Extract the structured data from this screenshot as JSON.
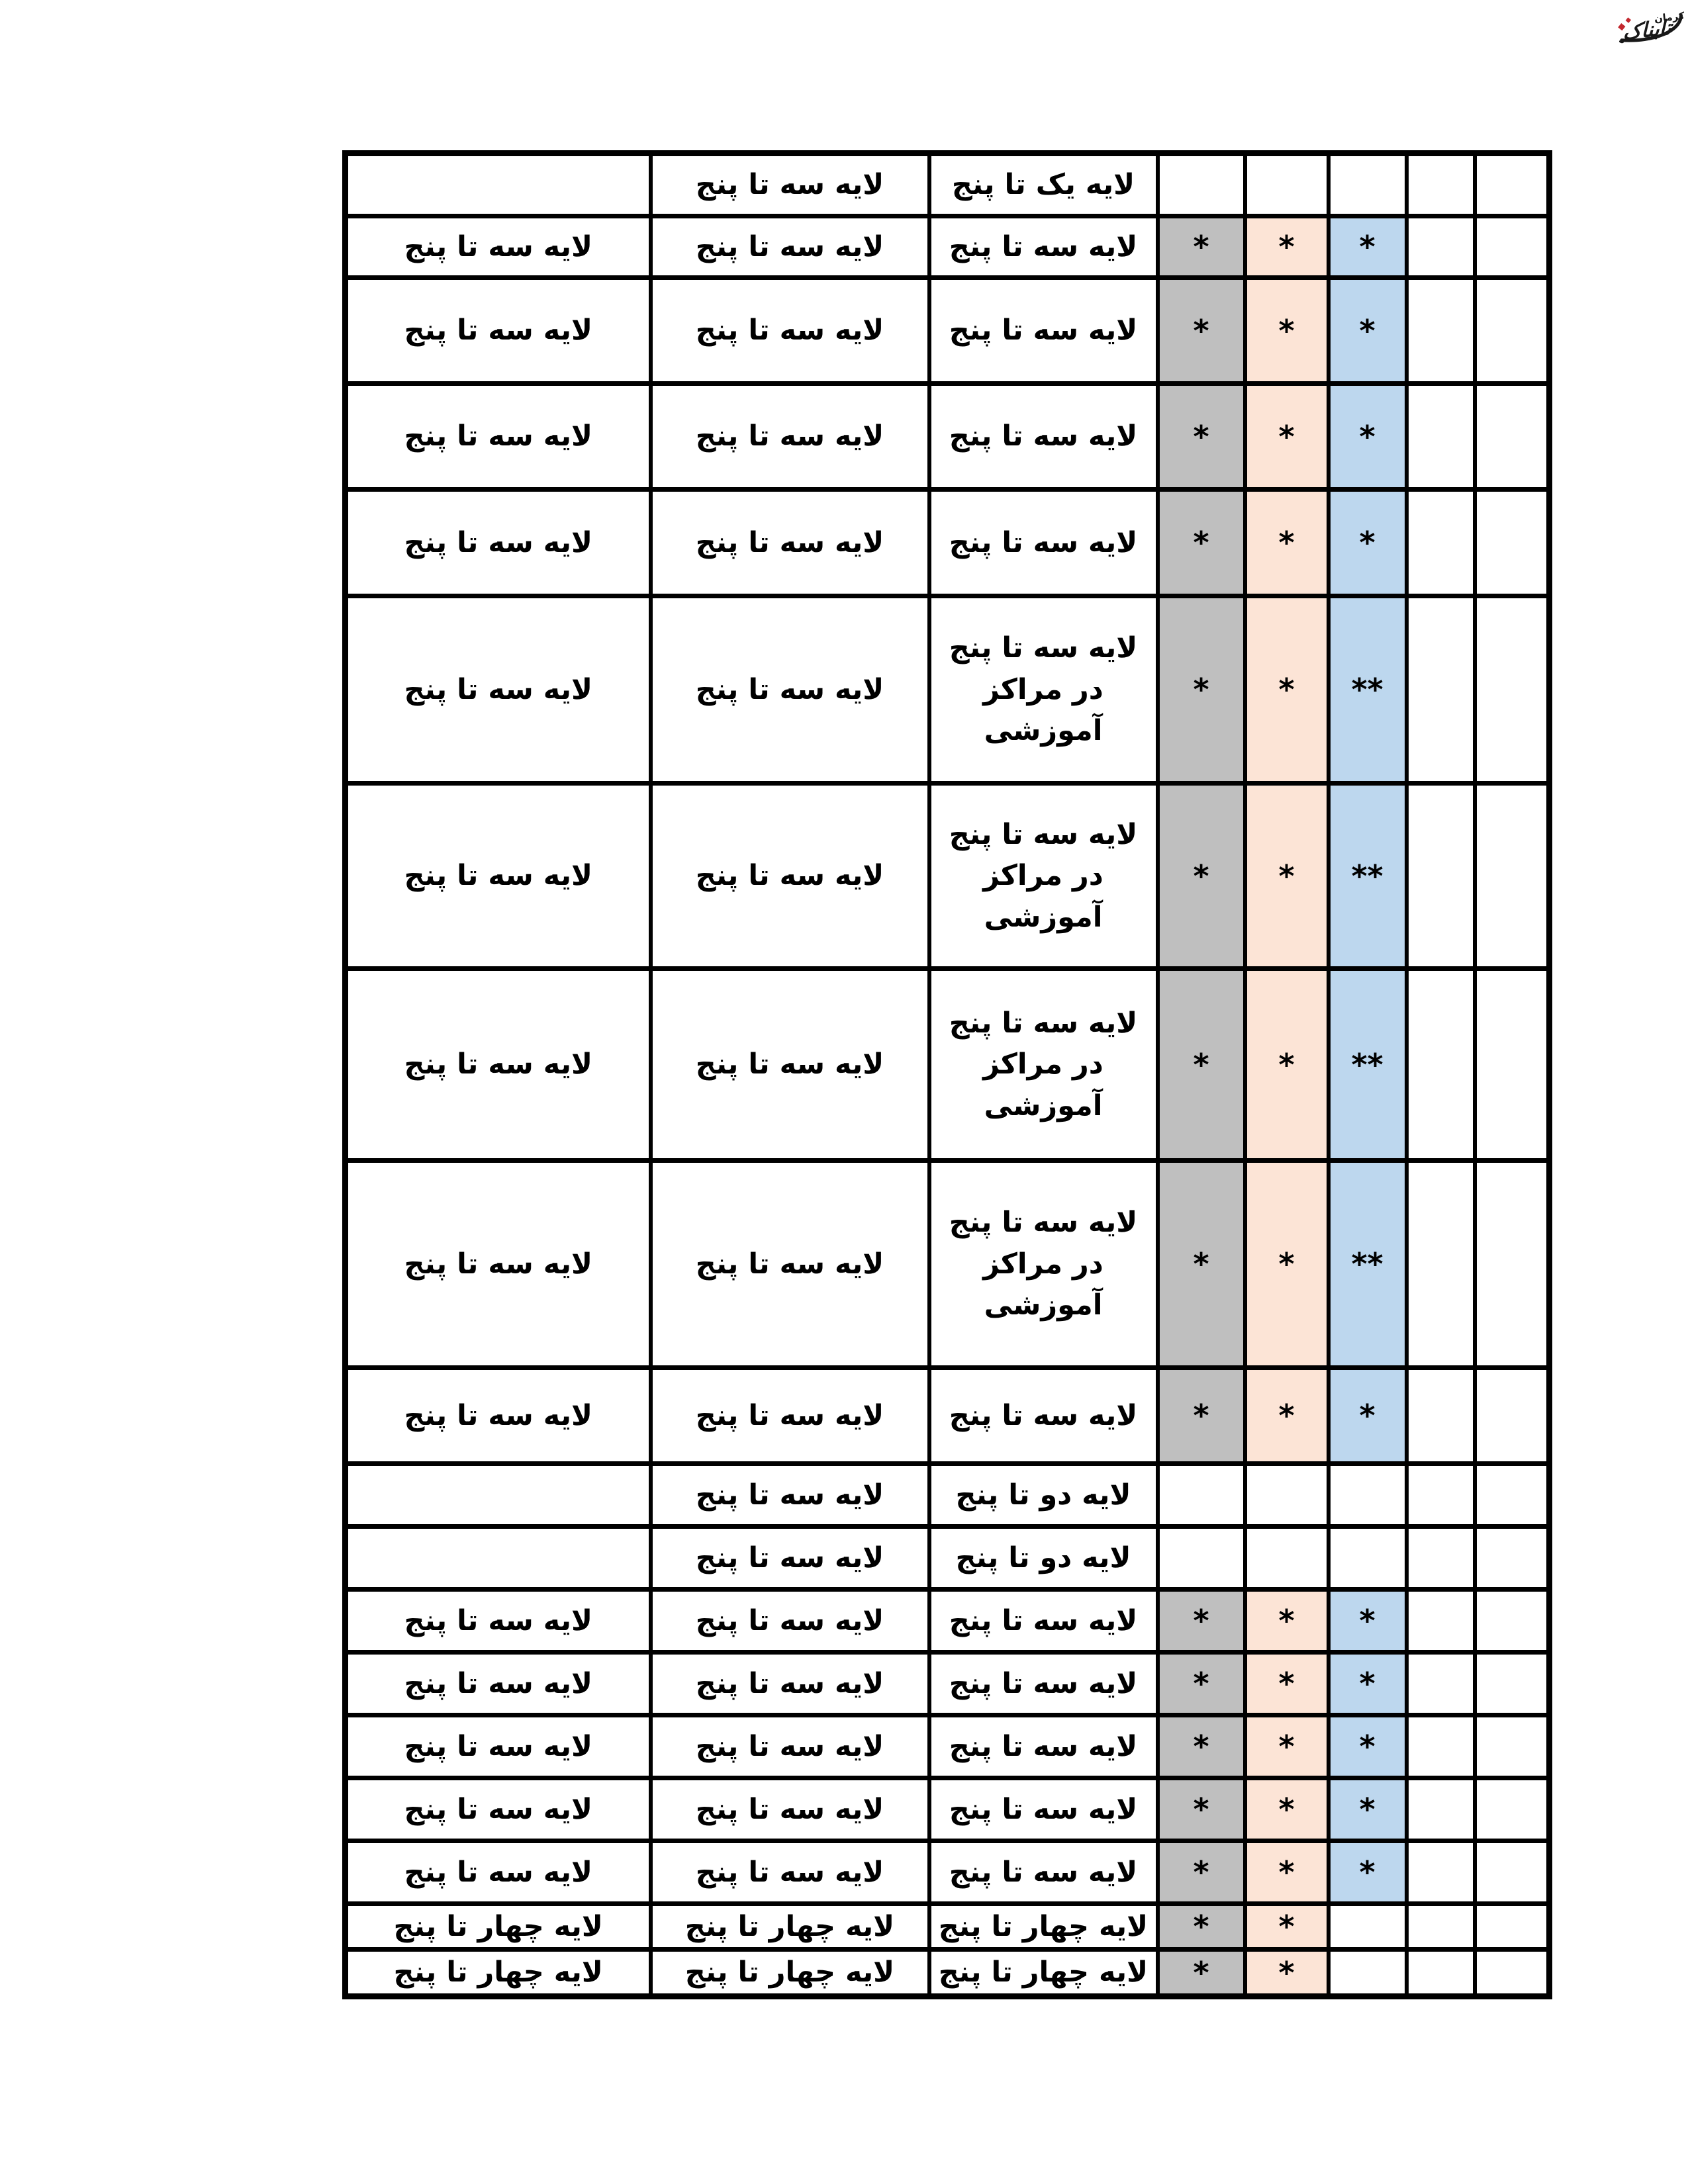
{
  "logo": {
    "title": "تابناک",
    "subtitle": "کرمان",
    "text_color": "#181818",
    "accent_color": "#c3272e"
  },
  "table": {
    "fill_colors": {
      "gray": "#BFBFBF",
      "peach": "#FCE4D6",
      "blue": "#BDD7EE"
    },
    "rows": [
      {
        "cells": [
          {
            "t": "",
            "bg": null
          },
          {
            "t": "لایه سه تا پنج",
            "bg": null
          },
          {
            "t": "لایه یک تا پنج",
            "bg": null
          },
          {
            "t": "",
            "bg": null
          },
          {
            "t": "",
            "bg": null
          },
          {
            "t": "",
            "bg": null
          },
          {
            "t": "",
            "bg": null
          },
          {
            "t": "",
            "bg": null
          }
        ]
      },
      {
        "cells": [
          {
            "t": "لایه سه تا پنج",
            "bg": null
          },
          {
            "t": "لایه سه تا پنج",
            "bg": null
          },
          {
            "t": "لایه سه تا پنج",
            "bg": null
          },
          {
            "t": "*",
            "bg": "gray"
          },
          {
            "t": "*",
            "bg": "peach"
          },
          {
            "t": "*",
            "bg": "blue"
          },
          {
            "t": "",
            "bg": null
          },
          {
            "t": "",
            "bg": null
          }
        ]
      },
      {
        "cells": [
          {
            "t": "لایه سه تا پنج",
            "bg": null
          },
          {
            "t": "لایه سه تا پنج",
            "bg": null
          },
          {
            "t": "لایه سه تا پنج",
            "bg": null
          },
          {
            "t": "*",
            "bg": "gray"
          },
          {
            "t": "*",
            "bg": "peach"
          },
          {
            "t": "*",
            "bg": "blue"
          },
          {
            "t": "",
            "bg": null
          },
          {
            "t": "",
            "bg": null
          }
        ]
      },
      {
        "cells": [
          {
            "t": "لایه سه تا پنج",
            "bg": null
          },
          {
            "t": "لایه سه تا پنج",
            "bg": null
          },
          {
            "t": "لایه سه تا پنج",
            "bg": null
          },
          {
            "t": "*",
            "bg": "gray"
          },
          {
            "t": "*",
            "bg": "peach"
          },
          {
            "t": "*",
            "bg": "blue"
          },
          {
            "t": "",
            "bg": null
          },
          {
            "t": "",
            "bg": null
          }
        ]
      },
      {
        "cells": [
          {
            "t": "لایه سه تا پنج",
            "bg": null
          },
          {
            "t": "لایه سه تا پنج",
            "bg": null
          },
          {
            "t": "لایه سه تا پنج",
            "bg": null
          },
          {
            "t": "*",
            "bg": "gray"
          },
          {
            "t": "*",
            "bg": "peach"
          },
          {
            "t": "*",
            "bg": "blue"
          },
          {
            "t": "",
            "bg": null
          },
          {
            "t": "",
            "bg": null
          }
        ]
      },
      {
        "cells": [
          {
            "t": "لایه سه تا پنج",
            "bg": null
          },
          {
            "t": "لایه سه تا پنج",
            "bg": null
          },
          {
            "t": "لایه سه تا پنج در مراکز آموزشی",
            "bg": null
          },
          {
            "t": "*",
            "bg": "gray"
          },
          {
            "t": "*",
            "bg": "peach"
          },
          {
            "t": "**",
            "bg": "blue"
          },
          {
            "t": "",
            "bg": null
          },
          {
            "t": "",
            "bg": null
          }
        ]
      },
      {
        "cells": [
          {
            "t": "لایه سه تا پنج",
            "bg": null
          },
          {
            "t": "لایه سه تا پنج",
            "bg": null
          },
          {
            "t": "لایه سه تا پنج در مراکز آموزشی",
            "bg": null
          },
          {
            "t": "*",
            "bg": "gray"
          },
          {
            "t": "*",
            "bg": "peach"
          },
          {
            "t": "**",
            "bg": "blue"
          },
          {
            "t": "",
            "bg": null
          },
          {
            "t": "",
            "bg": null
          }
        ]
      },
      {
        "cells": [
          {
            "t": "لایه سه تا پنج",
            "bg": null
          },
          {
            "t": "لایه سه تا پنج",
            "bg": null
          },
          {
            "t": "لایه سه تا پنج در مراکز آموزشی",
            "bg": null
          },
          {
            "t": "*",
            "bg": "gray"
          },
          {
            "t": "*",
            "bg": "peach"
          },
          {
            "t": "**",
            "bg": "blue"
          },
          {
            "t": "",
            "bg": null
          },
          {
            "t": "",
            "bg": null
          }
        ]
      },
      {
        "cells": [
          {
            "t": "لایه سه تا پنج",
            "bg": null
          },
          {
            "t": "لایه سه تا پنج",
            "bg": null
          },
          {
            "t": "لایه سه تا پنج در مراکز آموزشی",
            "bg": null
          },
          {
            "t": "*",
            "bg": "gray"
          },
          {
            "t": "*",
            "bg": "peach"
          },
          {
            "t": "**",
            "bg": "blue"
          },
          {
            "t": "",
            "bg": null
          },
          {
            "t": "",
            "bg": null
          }
        ]
      },
      {
        "cells": [
          {
            "t": "لایه سه تا پنج",
            "bg": null
          },
          {
            "t": "لایه سه تا پنج",
            "bg": null
          },
          {
            "t": "لایه سه تا پنج",
            "bg": null
          },
          {
            "t": "*",
            "bg": "gray"
          },
          {
            "t": "*",
            "bg": "peach"
          },
          {
            "t": "*",
            "bg": "blue"
          },
          {
            "t": "",
            "bg": null
          },
          {
            "t": "",
            "bg": null
          }
        ]
      },
      {
        "cells": [
          {
            "t": "",
            "bg": null
          },
          {
            "t": "لایه سه تا پنج",
            "bg": null
          },
          {
            "t": "لایه دو تا پنج",
            "bg": null
          },
          {
            "t": "",
            "bg": null
          },
          {
            "t": "",
            "bg": null
          },
          {
            "t": "",
            "bg": null
          },
          {
            "t": "",
            "bg": null
          },
          {
            "t": "",
            "bg": null
          }
        ]
      },
      {
        "cells": [
          {
            "t": "",
            "bg": null
          },
          {
            "t": "لایه سه تا پنج",
            "bg": null
          },
          {
            "t": "لایه دو تا پنج",
            "bg": null
          },
          {
            "t": "",
            "bg": null
          },
          {
            "t": "",
            "bg": null
          },
          {
            "t": "",
            "bg": null
          },
          {
            "t": "",
            "bg": null
          },
          {
            "t": "",
            "bg": null
          }
        ]
      },
      {
        "cells": [
          {
            "t": "لایه سه تا پنج",
            "bg": null
          },
          {
            "t": "لایه سه تا پنج",
            "bg": null
          },
          {
            "t": "لایه سه تا پنج",
            "bg": null
          },
          {
            "t": "*",
            "bg": "gray"
          },
          {
            "t": "*",
            "bg": "peach"
          },
          {
            "t": "*",
            "bg": "blue"
          },
          {
            "t": "",
            "bg": null
          },
          {
            "t": "",
            "bg": null
          }
        ]
      },
      {
        "cells": [
          {
            "t": "لایه سه تا پنج",
            "bg": null
          },
          {
            "t": "لایه سه تا پنج",
            "bg": null
          },
          {
            "t": "لایه سه تا پنج",
            "bg": null
          },
          {
            "t": "*",
            "bg": "gray"
          },
          {
            "t": "*",
            "bg": "peach"
          },
          {
            "t": "*",
            "bg": "blue"
          },
          {
            "t": "",
            "bg": null
          },
          {
            "t": "",
            "bg": null
          }
        ]
      },
      {
        "cells": [
          {
            "t": "لایه سه تا پنج",
            "bg": null
          },
          {
            "t": "لایه سه تا پنج",
            "bg": null
          },
          {
            "t": "لایه سه تا پنج",
            "bg": null
          },
          {
            "t": "*",
            "bg": "gray"
          },
          {
            "t": "*",
            "bg": "peach"
          },
          {
            "t": "*",
            "bg": "blue"
          },
          {
            "t": "",
            "bg": null
          },
          {
            "t": "",
            "bg": null
          }
        ]
      },
      {
        "cells": [
          {
            "t": "لایه سه تا پنج",
            "bg": null
          },
          {
            "t": "لایه سه تا پنج",
            "bg": null
          },
          {
            "t": "لایه سه تا پنج",
            "bg": null
          },
          {
            "t": "*",
            "bg": "gray"
          },
          {
            "t": "*",
            "bg": "peach"
          },
          {
            "t": "*",
            "bg": "blue"
          },
          {
            "t": "",
            "bg": null
          },
          {
            "t": "",
            "bg": null
          }
        ]
      },
      {
        "cells": [
          {
            "t": "لایه سه تا پنج",
            "bg": null
          },
          {
            "t": "لایه سه تا پنج",
            "bg": null
          },
          {
            "t": "لایه سه تا پنج",
            "bg": null
          },
          {
            "t": "*",
            "bg": "gray"
          },
          {
            "t": "*",
            "bg": "peach"
          },
          {
            "t": "*",
            "bg": "blue"
          },
          {
            "t": "",
            "bg": null
          },
          {
            "t": "",
            "bg": null
          }
        ]
      },
      {
        "cells": [
          {
            "t": "لایه چهار تا پنج",
            "bg": null
          },
          {
            "t": "لایه چهار تا پنج",
            "bg": null
          },
          {
            "t": "لایه چهار تا پنج",
            "bg": null
          },
          {
            "t": "*",
            "bg": "gray"
          },
          {
            "t": "*",
            "bg": "peach"
          },
          {
            "t": "",
            "bg": null
          },
          {
            "t": "",
            "bg": null
          },
          {
            "t": "",
            "bg": null
          }
        ]
      },
      {
        "cells": [
          {
            "t": "لایه چهار تا پنج",
            "bg": null
          },
          {
            "t": "لایه چهار تا پنج",
            "bg": null
          },
          {
            "t": "لایه چهار تا پنج",
            "bg": null
          },
          {
            "t": "*",
            "bg": "gray"
          },
          {
            "t": "*",
            "bg": "peach"
          },
          {
            "t": "",
            "bg": null
          },
          {
            "t": "",
            "bg": null
          },
          {
            "t": "",
            "bg": null
          }
        ]
      }
    ]
  }
}
